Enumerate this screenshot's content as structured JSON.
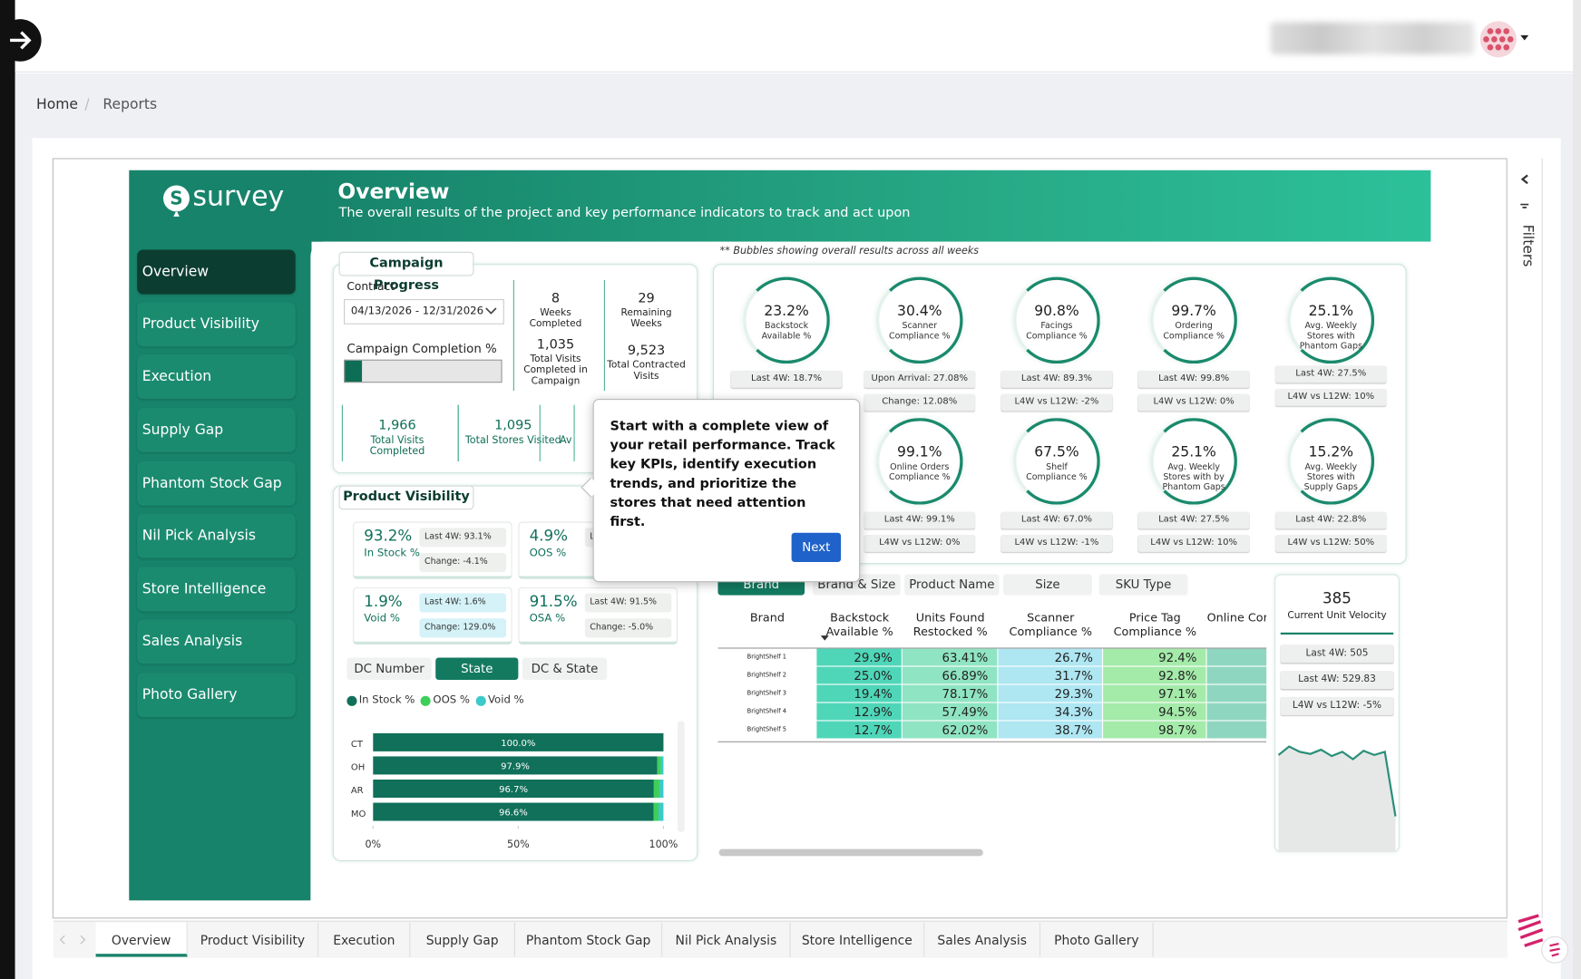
{
  "header": {
    "breadcrumb": [
      "Home",
      "Reports"
    ],
    "separator": "/"
  },
  "report": {
    "brand": "survey",
    "title": "Overview",
    "subtitle": "The overall results of the project and key performance indicators to track and act upon",
    "nav": [
      "Overview",
      "Product Visibility",
      "Execution",
      "Supply Gap",
      "Phantom Stock Gap",
      "Nil Pick Analysis",
      "Store Intelligence",
      "Sales Analysis",
      "Photo Gallery"
    ],
    "active_nav": 0,
    "tabs": [
      "Overview",
      "Product Visibility",
      "Execution",
      "Supply Gap",
      "Phantom Stock Gap",
      "Nil Pick Analysis",
      "Store Intelligence",
      "Sales Analysis",
      "Photo Gallery"
    ],
    "active_tab": 0,
    "filters_label": "Filters"
  },
  "campaign": {
    "title": "Campaign Progress",
    "contract_label": "Contract",
    "contract_range": "04/13/2026 - 12/31/2026",
    "completion_label": "Campaign Completion %",
    "completion_value": 11,
    "stats": [
      {
        "value": "8",
        "label": "Weeks Completed"
      },
      {
        "value": "29",
        "label": "Remaining Weeks"
      },
      {
        "value": "1,035",
        "label": "Total Visits Completed in Campaign"
      },
      {
        "value": "9,523",
        "label": "Total Contracted Visits"
      }
    ],
    "totals": [
      {
        "value": "1,966",
        "label": "Total Visits Completed"
      },
      {
        "value": "1,095",
        "label": "Total Stores Visited"
      },
      {
        "label": "Av"
      }
    ]
  },
  "visibility": {
    "title": "Product Visibility",
    "kpis": [
      {
        "value": "93.2%",
        "label": "In Stock %",
        "last": "Last 4W: 93.1%",
        "change": "Change: -4.1%"
      },
      {
        "value": "4.9%",
        "label": "OOS %",
        "last": "L"
      },
      {
        "value": "1.9%",
        "label": "Void %",
        "last": "Last 4W: 1.6%",
        "change": "Change: 129.0%"
      },
      {
        "value": "91.5%",
        "label": "OSA %",
        "last": "Last 4W: 91.5%",
        "change": "Change: -5.0%"
      }
    ],
    "toggles": [
      "DC Number",
      "State",
      "DC & State"
    ],
    "active_toggle": 1,
    "state_chart": {
      "type": "bar",
      "stacked": true,
      "categories": [
        "CT",
        "OH",
        "AR",
        "MO"
      ],
      "series": [
        {
          "name": "In Stock %",
          "color": "#10705a",
          "values": [
            100.0,
            97.9,
            96.7,
            96.6
          ],
          "value_labels": [
            "100.0%",
            "97.9%",
            "96.7%",
            "96.6%"
          ]
        },
        {
          "name": "OOS %",
          "color": "#3ecf5a",
          "values": [
            0,
            1.2,
            1.9,
            1.7
          ]
        },
        {
          "name": "Void %",
          "color": "#3cc9c9",
          "values": [
            0,
            0.9,
            1.4,
            1.7
          ]
        }
      ],
      "xlim": [
        0,
        100
      ],
      "xticks": [
        {
          "value": 0,
          "label": "0%"
        },
        {
          "value": 50,
          "label": "50%"
        },
        {
          "value": 100,
          "label": "100%"
        }
      ]
    }
  },
  "bubbles": {
    "note": "** Bubbles showing overall results across all weeks",
    "items": [
      {
        "value": "23.2%",
        "label": "Backstock Available %",
        "pills": [
          "Last 4W: 18.7%"
        ]
      },
      {
        "value": "30.4%",
        "label": "Scanner Compliance %",
        "pills": [
          "Upon Arrival: 27.08%",
          "Change: 12.08%"
        ]
      },
      {
        "value": "90.8%",
        "label": "Facings Compliance %",
        "pills": [
          "Last 4W: 89.3%",
          "L4W vs L12W: -2%"
        ]
      },
      {
        "value": "99.7%",
        "label": "Ordering Compliance %",
        "pills": [
          "Last 4W: 99.8%",
          "L4W vs L12W: 0%"
        ]
      },
      {
        "value": "25.1%",
        "label": "Avg. Weekly Stores with Phantom Gaps",
        "pills": [
          "Last 4W: 27.5%",
          "L4W vs L12W: 10%"
        ]
      },
      {
        "value": "99.1%",
        "label": "Online Orders Compliance %",
        "pills": [
          "Last 4W: 99.1%",
          "L4W vs L12W: 0%"
        ]
      },
      {
        "value": "67.5%",
        "label": "Shelf Compliance %",
        "pills": [
          "Last 4W: 67.0%",
          "L4W vs L12W: -1%"
        ]
      },
      {
        "value": "25.1%",
        "label": "Avg. Weekly Stores with by Phantom Gaps",
        "pills": [
          "Last 4W: 27.5%",
          "L4W vs L12W: 10%"
        ]
      },
      {
        "value": "15.2%",
        "label": "Avg. Weekly Stores with Supply Gaps",
        "pills": [
          "Last 4W: 22.8%",
          "L4W vs L12W: 50%"
        ]
      }
    ]
  },
  "table": {
    "tabs": [
      "Brand",
      "Brand & Size",
      "Product Name",
      "Size",
      "SKU Type"
    ],
    "active_tab": 0,
    "headers": [
      "Brand",
      "Backstock Available %",
      "Units Found Restocked %",
      "Scanner Compliance %",
      "Price Tag Compliance %",
      "Online Compliance"
    ],
    "rows": [
      [
        "BrightShelf 1",
        "29.9%",
        "63.41%",
        "26.7%",
        "92.4%"
      ],
      [
        "BrightShelf 2",
        "25.0%",
        "66.89%",
        "31.7%",
        "92.8%"
      ],
      [
        "BrightShelf 3",
        "19.4%",
        "78.17%",
        "29.3%",
        "97.1%"
      ],
      [
        "BrightShelf 4",
        "12.9%",
        "57.49%",
        "34.3%",
        "94.5%"
      ],
      [
        "BrightShelf 5",
        "12.7%",
        "62.02%",
        "38.7%",
        "98.7%"
      ]
    ]
  },
  "velocity": {
    "value": "385",
    "label": "Current Unit Velocity",
    "pills": [
      "Last 4W: 505",
      "Last 4W: 529.83",
      "L4W vs L12W: -5%"
    ],
    "trend": [
      88,
      96,
      91,
      89,
      93,
      87,
      91,
      84,
      92,
      88,
      91,
      30
    ]
  },
  "tooltip": {
    "text": "Start with a complete view of your retail performance. Track key KPIs, identify execution trends, and prioritize the stores that need attention first.",
    "button": "Next"
  }
}
